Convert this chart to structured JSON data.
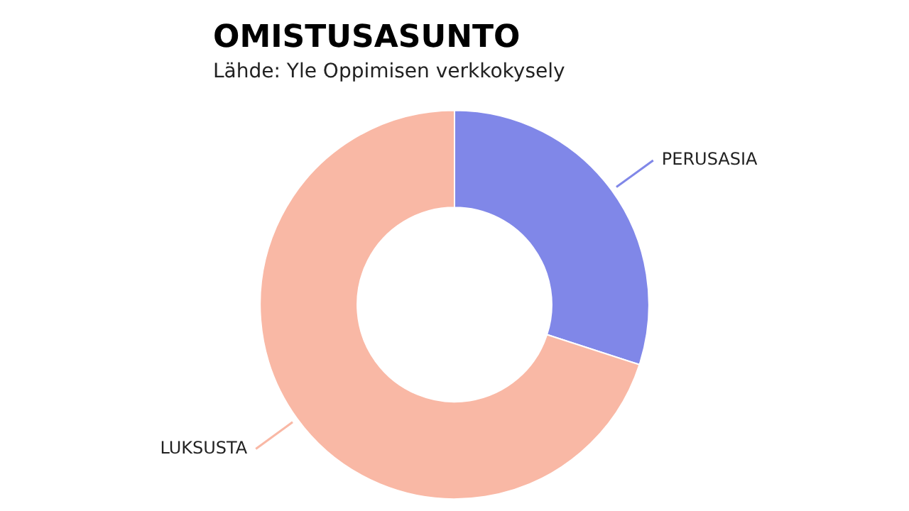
{
  "chart_data": {
    "type": "donut",
    "title": "OMISTUSASUNTO",
    "subtitle": "Lähde: Yle Oppimisen verkkokysely",
    "categories": [
      "PERUSASIA",
      "LUKSUSTA"
    ],
    "values": [
      30,
      70
    ],
    "colors": [
      "#8087e8",
      "#f9b8a5"
    ]
  }
}
